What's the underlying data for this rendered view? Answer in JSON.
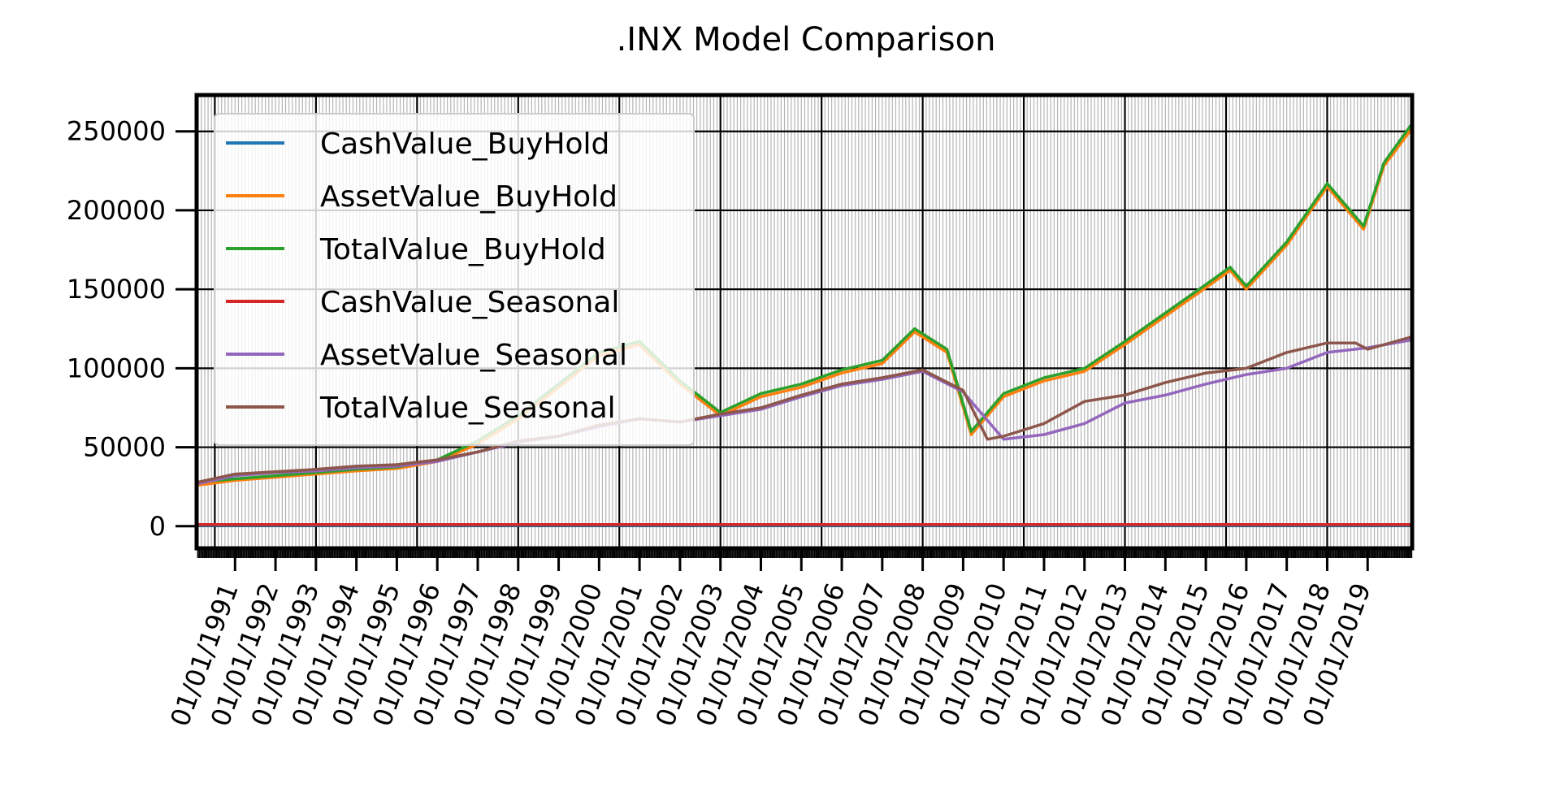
{
  "chart_data": {
    "type": "line",
    "title": ".INX Model Comparison",
    "xlabel": "",
    "ylabel": "",
    "x_ticks": [
      "01/01/1991",
      "01/01/1992",
      "01/01/1993",
      "01/01/1994",
      "01/01/1995",
      "01/01/1996",
      "01/01/1997",
      "01/01/1998",
      "01/01/1999",
      "01/01/2000",
      "01/01/2001",
      "01/01/2002",
      "01/01/2003",
      "01/01/2004",
      "01/01/2005",
      "01/01/2006",
      "01/01/2007",
      "01/01/2008",
      "01/01/2009",
      "01/01/2010",
      "01/01/2011",
      "01/01/2012",
      "01/01/2013",
      "01/01/2014",
      "01/01/2015",
      "01/01/2016",
      "01/01/2017",
      "01/01/2018",
      "01/01/2019"
    ],
    "y_ticks": [
      "0",
      "50000",
      "100000",
      "150000",
      "200000",
      "250000"
    ],
    "ylim": [
      -14000,
      273000
    ],
    "xlim": [
      1990.05,
      2020.1
    ],
    "grid": true,
    "legend_position": "upper-left",
    "series": [
      {
        "name": "CashValue_BuyHold",
        "color": "#1f77b4",
        "x": [
          1990.1,
          2020.1
        ],
        "y": [
          500,
          500
        ]
      },
      {
        "name": "AssetValue_BuyHold",
        "color": "#ff7f0e",
        "x": [
          1990.1,
          1991,
          1992,
          1993,
          1994,
          1995,
          1996,
          1997,
          1998,
          1999,
          2000,
          2001,
          2002,
          2003,
          2004,
          2005,
          2006,
          2007,
          2007.8,
          2008.6,
          2009.2,
          2010,
          2011,
          2012,
          2013,
          2014,
          2015,
          2015.6,
          2016,
          2017,
          2018,
          2018.9,
          2019.4,
          2020.1
        ],
        "y": [
          26000,
          29000,
          31000,
          33000,
          35000,
          36500,
          41000,
          52000,
          68000,
          88000,
          108000,
          115000,
          90000,
          70000,
          82000,
          88000,
          97000,
          103000,
          123000,
          110000,
          58000,
          82000,
          92000,
          98000,
          115000,
          133000,
          151000,
          162000,
          150000,
          178000,
          215000,
          188000,
          228000,
          252000
        ]
      },
      {
        "name": "TotalValue_BuyHold",
        "color": "#2ca02c",
        "x": [
          1990.1,
          1991,
          1992,
          1993,
          1994,
          1995,
          1996,
          1997,
          1998,
          1999,
          2000,
          2001,
          2002,
          2003,
          2004,
          2005,
          2006,
          2007,
          2007.8,
          2008.6,
          2009.2,
          2010,
          2011,
          2012,
          2013,
          2014,
          2015,
          2015.6,
          2016,
          2017,
          2018,
          2018.9,
          2019.4,
          2020.1
        ],
        "y": [
          28000,
          30000,
          32000,
          34000,
          36000,
          37500,
          42000,
          54000,
          70000,
          90000,
          110000,
          117000,
          92000,
          72000,
          84000,
          90000,
          99000,
          105000,
          125000,
          112000,
          60000,
          84000,
          94000,
          100000,
          117000,
          135000,
          153000,
          164000,
          152000,
          180000,
          217000,
          190000,
          230000,
          255000
        ]
      },
      {
        "name": "CashValue_Seasonal",
        "color": "#d62728",
        "x": [
          1990.1,
          2020.1
        ],
        "y": [
          1000,
          1000
        ]
      },
      {
        "name": "AssetValue_Seasonal",
        "color": "#9467bd",
        "x": [
          1990.1,
          1991,
          1992,
          1993,
          1994,
          1995,
          1996,
          1997,
          1998,
          1999,
          2000,
          2001,
          2002,
          2003,
          2004,
          2005,
          2006,
          2007,
          2008,
          2009,
          2010,
          2011,
          2012,
          2013,
          2014,
          2015,
          2016,
          2017,
          2018,
          2019,
          2020.1
        ],
        "y": [
          27000,
          32000,
          34000,
          35000,
          37000,
          38000,
          41000,
          47000,
          53000,
          57000,
          63000,
          68000,
          66000,
          70000,
          74000,
          82000,
          89000,
          93000,
          98000,
          85000,
          55000,
          58000,
          65000,
          78000,
          83000,
          90000,
          96000,
          100000,
          110000,
          113000,
          118000
        ]
      },
      {
        "name": "TotalValue_Seasonal",
        "color": "#8c564b",
        "x": [
          1990.1,
          1991,
          1992,
          1993,
          1994,
          1995,
          1996,
          1997,
          1998,
          1999,
          2000,
          2001,
          2002,
          2003,
          2004,
          2005,
          2006,
          2007,
          2008,
          2009,
          2009.6,
          2010,
          2011,
          2012,
          2013,
          2014,
          2015,
          2016,
          2017,
          2018,
          2018.7,
          2019,
          2020.1
        ],
        "y": [
          28000,
          33000,
          34500,
          36000,
          38000,
          39000,
          42000,
          47000,
          54000,
          57000,
          64000,
          68000,
          66000,
          71000,
          75000,
          83000,
          90000,
          94000,
          99000,
          86000,
          55000,
          57000,
          65000,
          79000,
          83000,
          91000,
          97000,
          100000,
          110000,
          116000,
          116000,
          112000,
          120000
        ]
      }
    ]
  }
}
